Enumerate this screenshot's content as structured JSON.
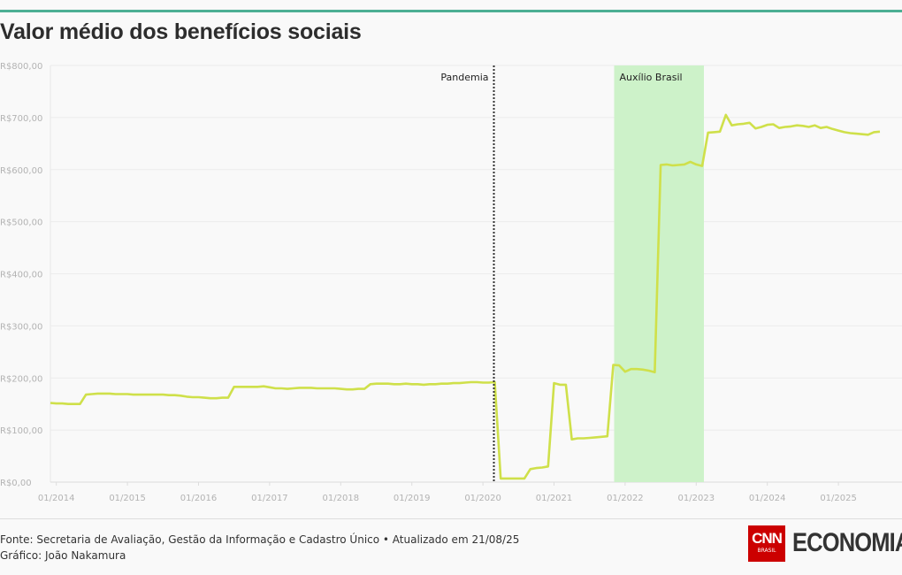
{
  "title": "Valor médio dos benefícios sociais",
  "footer": {
    "source": "Fonte: Secretaria de Avaliação, Gestão da Informação e Cadastro Único • Atualizado em 21/08/25",
    "credit": "Gráfico: João Nakamura"
  },
  "logo": {
    "cnn": "CNN",
    "cnn_sub": "BRASIL",
    "section": "ECONOMIA"
  },
  "colors": {
    "line": "#cfe04a",
    "band": "#cdf2c9",
    "accent": "#4caf94"
  },
  "chart_data": {
    "type": "line",
    "title": "Valor médio dos benefícios sociais",
    "xlabel": "",
    "ylabel": "",
    "x_start": "12/2013",
    "x_frequency": "monthly",
    "ylim": [
      0,
      800
    ],
    "yticks": [
      0,
      100,
      200,
      300,
      400,
      500,
      600,
      700,
      800
    ],
    "ytick_labels": [
      "R$0,00",
      "R$100,00",
      "R$200,00",
      "R$300,00",
      "R$400,00",
      "R$500,00",
      "R$600,00",
      "R$700,00",
      "R$800,00"
    ],
    "xtick_labels": [
      "01/2014",
      "01/2015",
      "01/2016",
      "01/2017",
      "01/2018",
      "01/2019",
      "01/2020",
      "01/2021",
      "01/2022",
      "01/2023",
      "01/2024",
      "01/2025"
    ],
    "grid": true,
    "values": [
      152,
      151,
      151,
      150,
      150,
      150,
      168,
      169,
      170,
      170,
      170,
      169,
      169,
      169,
      168,
      168,
      168,
      168,
      168,
      168,
      167,
      167,
      166,
      164,
      163,
      163,
      162,
      161,
      161,
      162,
      162,
      183,
      183,
      183,
      183,
      183,
      184,
      182,
      180,
      180,
      179,
      180,
      181,
      181,
      181,
      180,
      180,
      180,
      180,
      179,
      178,
      178,
      179,
      179,
      188,
      189,
      189,
      189,
      188,
      188,
      189,
      188,
      188,
      187,
      188,
      188,
      189,
      189,
      190,
      190,
      191,
      192,
      192,
      191,
      191,
      192,
      7,
      7,
      7,
      7,
      7,
      25,
      27,
      28,
      30,
      190,
      187,
      187,
      82,
      84,
      84,
      85,
      86,
      87,
      88,
      225,
      224,
      212,
      217,
      217,
      216,
      214,
      211,
      609,
      610,
      608,
      609,
      610,
      615,
      610,
      607,
      671,
      672,
      673,
      705,
      685,
      687,
      688,
      690,
      679,
      682,
      686,
      687,
      680,
      682,
      683,
      685,
      684,
      682,
      685,
      680,
      682,
      678,
      675,
      672,
      670,
      669,
      668,
      667,
      672,
      673
    ],
    "annotations": [
      {
        "type": "vline",
        "label": "Pandemia",
        "x": "03/2020"
      },
      {
        "type": "band",
        "label": "Auxílio Brasil",
        "x_from": "11/2021",
        "x_to": "02/2023"
      }
    ]
  }
}
